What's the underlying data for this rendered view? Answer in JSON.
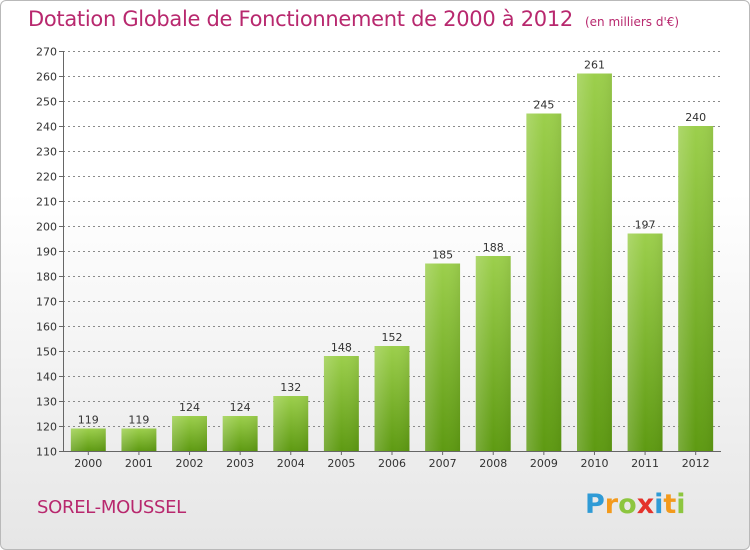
{
  "header": {
    "title": "Dotation Globale de Fonctionnement de 2000 à 2012",
    "unit": "(en milliers d'€)"
  },
  "footer": {
    "commune": "SOREL-MOUSSEL",
    "logo_letters": [
      "P",
      "r",
      "o",
      "x",
      "i",
      "t",
      "i"
    ]
  },
  "colors": {
    "title": "#b8286e",
    "bar_top": "#9ccf4c",
    "bar_bottom": "#5e9a12",
    "grid": "#888888"
  },
  "chart_data": {
    "type": "bar",
    "title": "Dotation Globale de Fonctionnement de 2000 à 2012",
    "subtitle": "(en milliers d'€)",
    "xlabel": "",
    "ylabel": "",
    "categories": [
      "2000",
      "2001",
      "2002",
      "2003",
      "2004",
      "2005",
      "2006",
      "2007",
      "2008",
      "2009",
      "2010",
      "2011",
      "2012"
    ],
    "values": [
      119,
      119,
      124,
      124,
      132,
      148,
      152,
      185,
      188,
      245,
      261,
      197,
      240
    ],
    "ylim": [
      110,
      270
    ],
    "yticks": [
      110,
      120,
      130,
      140,
      150,
      160,
      170,
      180,
      190,
      200,
      210,
      220,
      230,
      240,
      250,
      260,
      270
    ],
    "grid": true,
    "legend": "none"
  }
}
